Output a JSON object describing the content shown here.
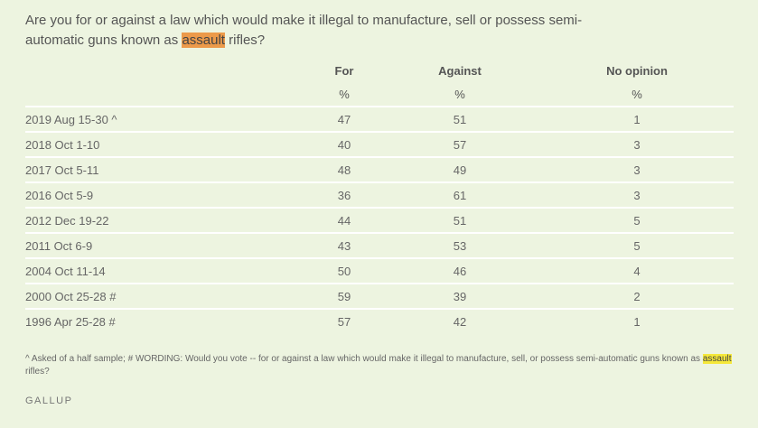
{
  "question": {
    "before": "Are you for or against a law which would make it illegal to manufacture, sell or possess semi-automatic guns known as ",
    "highlight": "assault",
    "after": " rifles?"
  },
  "columns": [
    {
      "label": "For",
      "unit": "%"
    },
    {
      "label": "Against",
      "unit": "%"
    },
    {
      "label": "No opinion",
      "unit": "%"
    }
  ],
  "rows": [
    {
      "date": "2019 Aug 15-30 ^",
      "for": "47",
      "against": "51",
      "no_opinion": "1"
    },
    {
      "date": "2018 Oct 1-10",
      "for": "40",
      "against": "57",
      "no_opinion": "3"
    },
    {
      "date": "2017 Oct 5-11",
      "for": "48",
      "against": "49",
      "no_opinion": "3"
    },
    {
      "date": "2016 Oct 5-9",
      "for": "36",
      "against": "61",
      "no_opinion": "3"
    },
    {
      "date": "2012 Dec 19-22",
      "for": "44",
      "against": "51",
      "no_opinion": "5"
    },
    {
      "date": "2011 Oct 6-9",
      "for": "43",
      "against": "53",
      "no_opinion": "5"
    },
    {
      "date": "2004 Oct 11-14",
      "for": "50",
      "against": "46",
      "no_opinion": "4"
    },
    {
      "date": "2000 Oct 25-28 #",
      "for": "59",
      "against": "39",
      "no_opinion": "2"
    },
    {
      "date": "1996 Apr 25-28 #",
      "for": "57",
      "against": "42",
      "no_opinion": "1"
    }
  ],
  "footnote": {
    "before": "^ Asked of a half sample; # WORDING: Would you vote -- for or against a law which would make it illegal to manufacture, sell, or possess semi-automatic guns known as ",
    "highlight": "assault",
    "after": " rifles?"
  },
  "source": "GALLUP",
  "colors": {
    "background": "#edf4e0",
    "highlight_question": "#ec9a4a",
    "highlight_footnote": "#f5e83a"
  }
}
